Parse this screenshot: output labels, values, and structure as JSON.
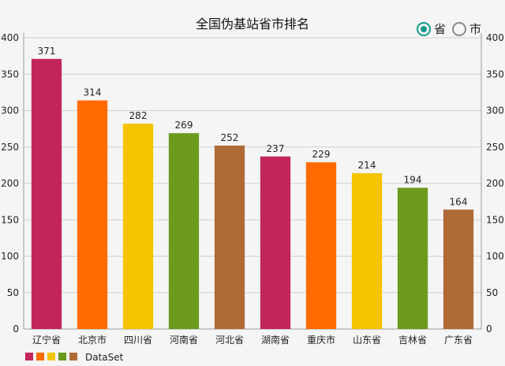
{
  "filter": {
    "options": [
      {
        "label": "省",
        "selected": true
      },
      {
        "label": "市",
        "selected": false
      }
    ],
    "accent_color": "#139a8a"
  },
  "chart_data": {
    "type": "bar",
    "title": "全国伪基站省市排名",
    "categories": [
      "辽宁省",
      "北京市",
      "四川省",
      "河南省",
      "河北省",
      "湖南省",
      "重庆市",
      "山东省",
      "吉林省",
      "广东省"
    ],
    "series": [
      {
        "name": "DataSet",
        "values": [
          371,
          314,
          282,
          269,
          252,
          237,
          229,
          214,
          194,
          164
        ]
      }
    ],
    "colors": [
      "#c2255c",
      "#ff6b00",
      "#f5c400",
      "#6b9a1f",
      "#b06a36",
      "#c2255c",
      "#ff6b00",
      "#f5c400",
      "#6b9a1f",
      "#b06a36"
    ],
    "legend_swatches": [
      "#c2255c",
      "#ff6b00",
      "#f5c400",
      "#6b9a1f",
      "#b06a36"
    ],
    "ylim": [
      0,
      400
    ],
    "yticks": [
      0,
      50,
      100,
      150,
      200,
      250,
      300,
      350,
      400
    ],
    "right_axis": true,
    "grid": true,
    "legend_position": "bottom-left"
  }
}
